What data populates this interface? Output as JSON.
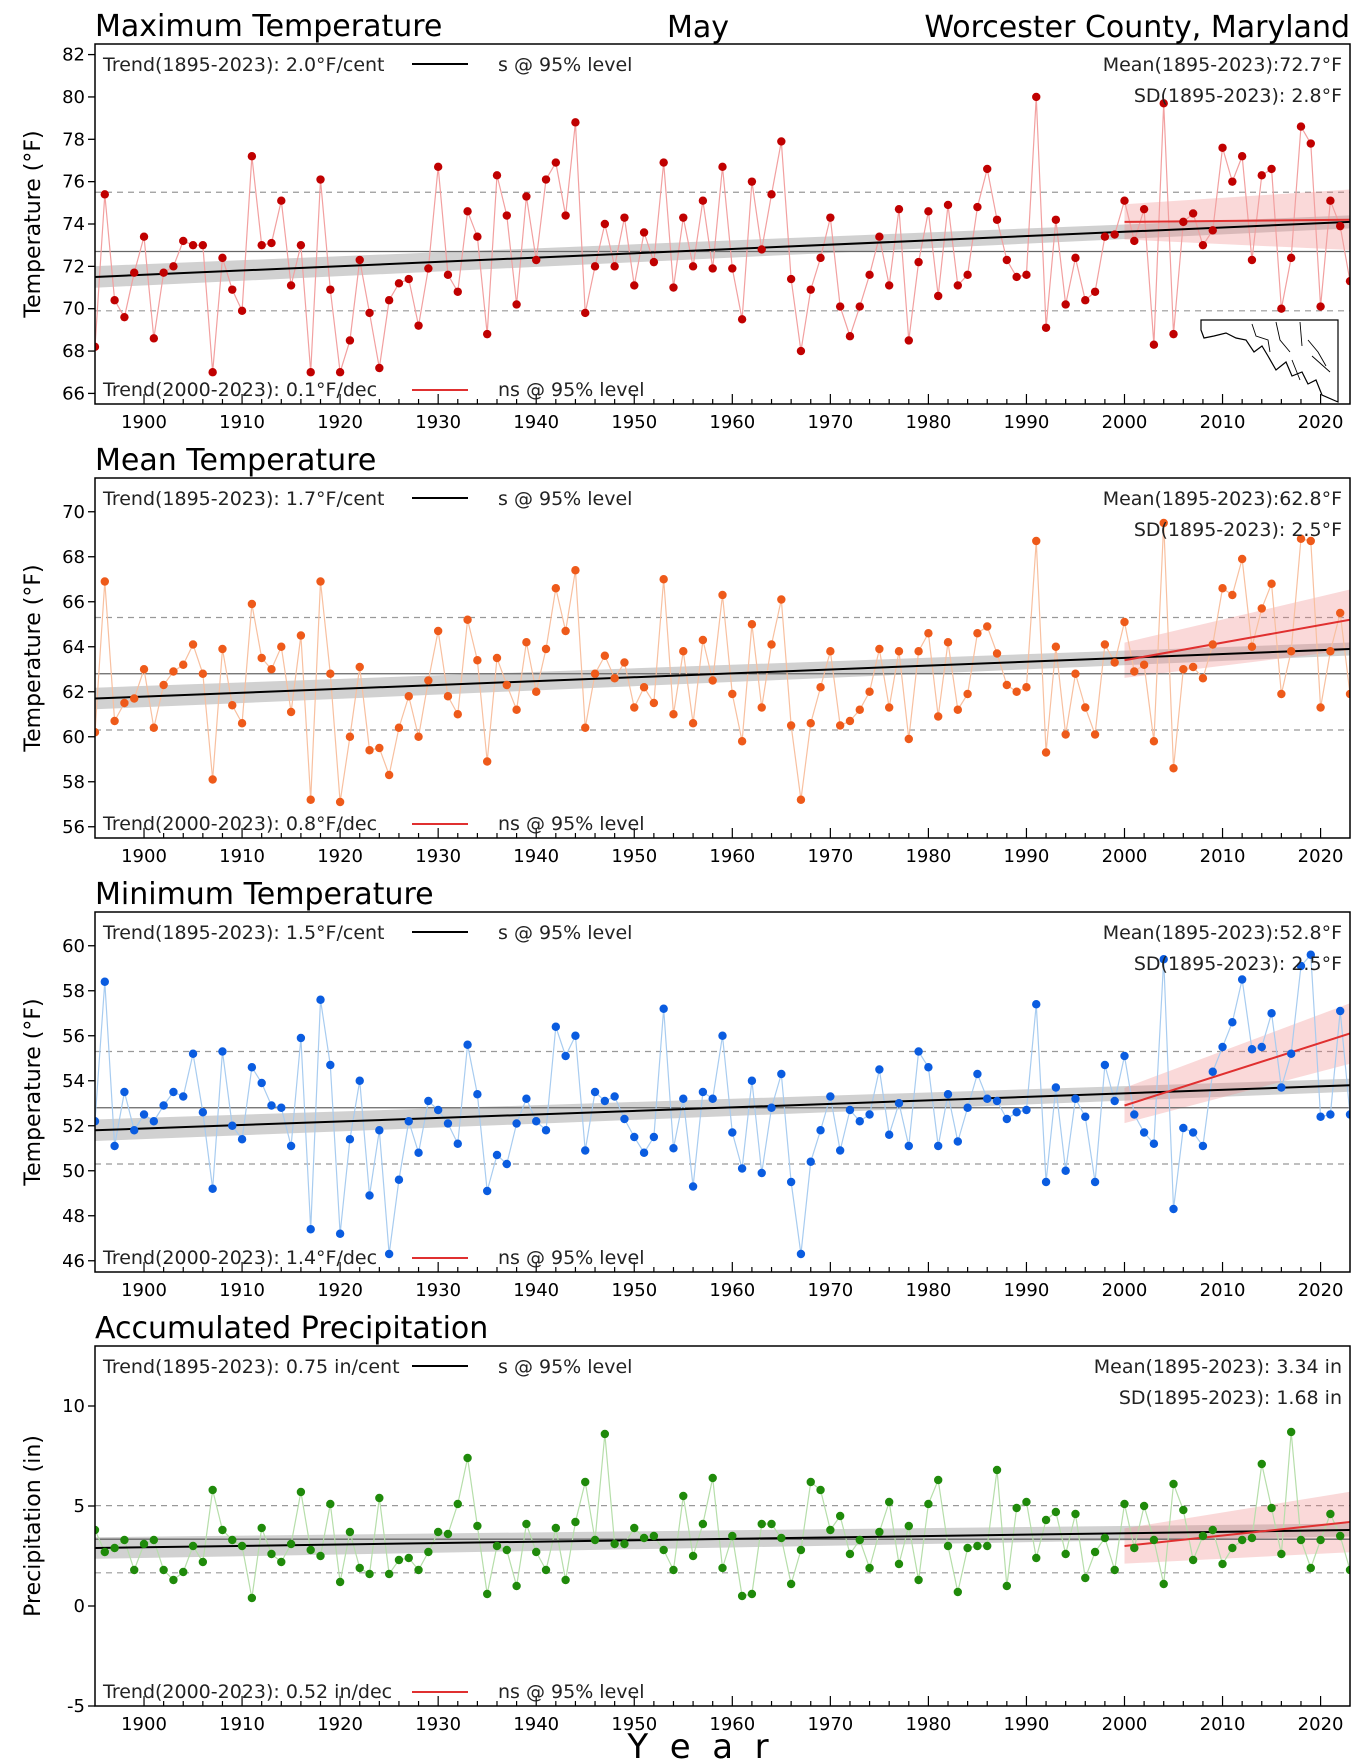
{
  "header": {
    "month": "May",
    "location": "Worcester County, Maryland"
  },
  "xaxis": {
    "label": "Y  e  a  r",
    "range": [
      1895,
      2023
    ],
    "ticks": [
      1900,
      1910,
      1920,
      1930,
      1940,
      1950,
      1960,
      1970,
      1980,
      1990,
      2000,
      2010,
      2020
    ]
  },
  "icons": {
    "inset_map": "maryland-map-icon"
  },
  "chart_data": [
    {
      "type": "line",
      "title": "Maximum Temperature",
      "ylabel": "Temperature (°F)",
      "ylim": [
        65.5,
        82.5
      ],
      "yticks": [
        66,
        68,
        70,
        72,
        74,
        76,
        78,
        80,
        82
      ],
      "trend_long_label": "Trend(1895-2023):  2.0°F/cent",
      "trend_long_sig": "s @ 95% level",
      "trend_recent_label": "Trend(2000-2023):  0.1°F/dec",
      "trend_recent_sig": "ns @ 95% level",
      "mean_label": "Mean(1895-2023):72.7°F",
      "sd_label": "SD(1895-2023): 2.8°F",
      "mean": 72.7,
      "sd": 2.8,
      "trend_long": [
        71.5,
        74.1
      ],
      "trend_recent": [
        74.1,
        74.2
      ],
      "point_color": "#c00000",
      "line_color": "#f2a0a0",
      "x_start": 1895,
      "values": [
        68.2,
        75.4,
        70.4,
        69.6,
        71.7,
        73.4,
        68.6,
        71.7,
        72.0,
        73.2,
        73.0,
        73.0,
        67.0,
        72.4,
        70.9,
        69.9,
        77.2,
        73.0,
        73.1,
        75.1,
        71.1,
        73.0,
        67.0,
        76.1,
        70.9,
        67.0,
        68.5,
        72.3,
        69.8,
        67.2,
        70.4,
        71.2,
        71.4,
        69.2,
        71.9,
        76.7,
        71.6,
        70.8,
        74.6,
        73.4,
        68.8,
        76.3,
        74.4,
        70.2,
        75.3,
        72.3,
        76.1,
        76.9,
        74.4,
        78.8,
        69.8,
        72.0,
        74.0,
        72.0,
        74.3,
        71.1,
        73.6,
        72.2,
        76.9,
        71.0,
        74.3,
        72.0,
        75.1,
        71.9,
        76.7,
        71.9,
        69.5,
        76.0,
        72.8,
        75.4,
        77.9,
        71.4,
        68.0,
        70.9,
        72.4,
        74.3,
        70.1,
        68.7,
        70.1,
        71.6,
        73.4,
        71.1,
        74.7,
        68.5,
        72.2,
        74.6,
        70.6,
        74.9,
        71.1,
        71.6,
        74.8,
        76.6,
        74.2,
        72.3,
        71.5,
        71.6,
        80.0,
        69.1,
        74.2,
        70.2,
        72.4,
        70.4,
        70.8,
        73.4,
        73.5,
        75.1,
        73.2,
        74.7,
        68.3,
        79.7,
        68.8,
        74.1,
        74.5,
        73.0,
        73.7,
        77.6,
        76.0,
        77.2,
        72.3,
        76.3,
        76.6,
        70.0,
        72.4,
        78.6,
        77.8,
        70.1,
        75.1,
        73.9,
        71.3
      ]
    },
    {
      "type": "line",
      "title": "Mean Temperature",
      "ylabel": "Temperature (°F)",
      "ylim": [
        55.5,
        71.5
      ],
      "yticks": [
        56,
        58,
        60,
        62,
        64,
        66,
        68,
        70
      ],
      "trend_long_label": "Trend(1895-2023):  1.7°F/cent",
      "trend_long_sig": "s @ 95% level",
      "trend_recent_label": "Trend(2000-2023):  0.8°F/dec",
      "trend_recent_sig": "ns @ 95% level",
      "mean_label": "Mean(1895-2023):62.8°F",
      "sd_label": "SD(1895-2023): 2.5°F",
      "mean": 62.8,
      "sd": 2.5,
      "trend_long": [
        61.7,
        63.9
      ],
      "trend_recent": [
        63.4,
        65.2
      ],
      "point_color": "#ee5a1a",
      "line_color": "#f8c0a0",
      "x_start": 1895,
      "values": [
        60.2,
        66.9,
        60.7,
        61.5,
        61.7,
        63.0,
        60.4,
        62.3,
        62.9,
        63.2,
        64.1,
        62.8,
        58.1,
        63.9,
        61.4,
        60.6,
        65.9,
        63.5,
        63.0,
        64.0,
        61.1,
        64.5,
        57.2,
        66.9,
        62.8,
        57.1,
        60.0,
        63.1,
        59.4,
        59.5,
        58.3,
        60.4,
        61.8,
        60.0,
        62.5,
        64.7,
        61.8,
        61.0,
        65.2,
        63.4,
        58.9,
        63.5,
        62.3,
        61.2,
        64.2,
        62.0,
        63.9,
        66.6,
        64.7,
        67.4,
        60.4,
        62.8,
        63.6,
        62.6,
        63.3,
        61.3,
        62.2,
        61.5,
        67.0,
        61.0,
        63.8,
        60.6,
        64.3,
        62.5,
        66.3,
        61.9,
        59.8,
        65.0,
        61.3,
        64.1,
        66.1,
        60.5,
        57.2,
        60.6,
        62.2,
        63.8,
        60.5,
        60.7,
        61.2,
        62.0,
        63.9,
        61.3,
        63.8,
        59.9,
        63.8,
        64.6,
        60.9,
        64.2,
        61.2,
        61.9,
        64.6,
        64.9,
        63.7,
        62.3,
        62.0,
        62.2,
        68.7,
        59.3,
        64.0,
        60.1,
        62.8,
        61.3,
        60.1,
        64.1,
        63.3,
        65.1,
        62.9,
        63.2,
        59.8,
        69.5,
        58.6,
        63.0,
        63.1,
        62.6,
        64.1,
        66.6,
        66.3,
        67.9,
        64.0,
        65.7,
        66.8,
        61.9,
        63.8,
        68.8,
        68.7,
        61.3,
        63.8,
        65.5,
        61.9
      ]
    },
    {
      "type": "line",
      "title": "Minimum Temperature",
      "ylabel": "Temperature (°F)",
      "ylim": [
        45.5,
        61.5
      ],
      "yticks": [
        46,
        48,
        50,
        52,
        54,
        56,
        58,
        60
      ],
      "trend_long_label": "Trend(1895-2023):  1.5°F/cent",
      "trend_long_sig": "s @ 95% level",
      "trend_recent_label": "Trend(2000-2023):  1.4°F/dec",
      "trend_recent_sig": "ns @ 95% level",
      "mean_label": "Mean(1895-2023):52.8°F",
      "sd_label": "SD(1895-2023): 2.5°F",
      "mean": 52.8,
      "sd": 2.5,
      "trend_long": [
        51.8,
        53.8
      ],
      "trend_recent": [
        52.9,
        56.1
      ],
      "point_color": "#0a5ce0",
      "line_color": "#a8ccf0",
      "x_start": 1895,
      "values": [
        52.2,
        58.4,
        51.1,
        53.5,
        51.8,
        52.5,
        52.2,
        52.9,
        53.5,
        53.3,
        55.2,
        52.6,
        49.2,
        55.3,
        52.0,
        51.4,
        54.6,
        53.9,
        52.9,
        52.8,
        51.1,
        55.9,
        47.4,
        57.6,
        54.7,
        47.2,
        51.4,
        54.0,
        48.9,
        51.8,
        46.3,
        49.6,
        52.2,
        50.8,
        53.1,
        52.7,
        52.1,
        51.2,
        55.6,
        53.4,
        49.1,
        50.7,
        50.3,
        52.1,
        53.2,
        52.2,
        51.8,
        56.4,
        55.1,
        56.0,
        50.9,
        53.5,
        53.1,
        53.3,
        52.3,
        51.5,
        50.8,
        51.5,
        57.2,
        51.0,
        53.2,
        49.3,
        53.5,
        53.2,
        56.0,
        51.7,
        50.1,
        54.0,
        49.9,
        52.8,
        54.3,
        49.5,
        46.3,
        50.4,
        51.8,
        53.3,
        50.9,
        52.7,
        52.2,
        52.5,
        54.5,
        51.6,
        53.0,
        51.1,
        55.3,
        54.6,
        51.1,
        53.4,
        51.3,
        52.8,
        54.3,
        53.2,
        53.1,
        52.3,
        52.6,
        52.7,
        57.4,
        49.5,
        53.7,
        50.0,
        53.2,
        52.4,
        49.5,
        54.7,
        53.1,
        55.1,
        52.5,
        51.7,
        51.2,
        59.4,
        48.3,
        51.9,
        51.7,
        51.1,
        54.4,
        55.5,
        56.6,
        58.5,
        55.4,
        55.5,
        57.0,
        53.7,
        55.2,
        59.1,
        59.6,
        52.4,
        52.5,
        57.1,
        52.5
      ]
    },
    {
      "type": "line",
      "title": "Accumulated Precipitation",
      "ylabel": "Precipitation (in)",
      "ylim": [
        -5,
        13
      ],
      "yticks": [
        -5,
        0,
        5,
        10
      ],
      "trend_long_label": "Trend(1895-2023):  0.75 in/cent",
      "trend_long_sig": "s @ 95% level",
      "trend_recent_label": "Trend(2000-2023):  0.52 in/dec",
      "trend_recent_sig": "ns @ 95% level",
      "mean_label": "Mean(1895-2023): 3.34 in",
      "sd_label": "SD(1895-2023): 1.68 in",
      "mean": 3.34,
      "sd": 1.68,
      "trend_long": [
        2.9,
        3.8
      ],
      "trend_recent": [
        3.0,
        4.2
      ],
      "point_color": "#1f8a0a",
      "line_color": "#b6deaa",
      "x_start": 1895,
      "values": [
        3.8,
        2.7,
        2.9,
        3.3,
        1.8,
        3.1,
        3.3,
        1.8,
        1.3,
        1.7,
        3.0,
        2.2,
        5.8,
        3.8,
        3.3,
        3.0,
        0.4,
        3.9,
        2.6,
        2.2,
        3.1,
        5.7,
        2.8,
        2.5,
        5.1,
        1.2,
        3.7,
        1.9,
        1.6,
        5.4,
        1.6,
        2.3,
        2.4,
        1.8,
        2.7,
        3.7,
        3.6,
        5.1,
        7.4,
        4.0,
        0.6,
        3.0,
        2.8,
        1.0,
        4.1,
        2.7,
        1.8,
        3.9,
        1.3,
        4.2,
        6.2,
        3.3,
        8.6,
        3.1,
        3.1,
        3.9,
        3.4,
        3.5,
        2.8,
        1.8,
        5.5,
        2.5,
        4.1,
        6.4,
        1.9,
        3.5,
        0.5,
        0.6,
        4.1,
        4.1,
        3.4,
        1.1,
        2.8,
        6.2,
        5.8,
        3.8,
        4.5,
        2.6,
        3.3,
        1.9,
        3.7,
        5.2,
        2.1,
        4.0,
        1.3,
        5.1,
        6.3,
        3.0,
        0.7,
        2.9,
        3.0,
        3.0,
        6.8,
        1.0,
        4.9,
        5.2,
        2.4,
        4.3,
        4.7,
        2.6,
        4.6,
        1.4,
        2.7,
        3.4,
        1.8,
        5.1,
        2.9,
        5.0,
        3.3,
        1.1,
        6.1,
        4.8,
        2.3,
        3.5,
        3.8,
        2.1,
        2.9,
        3.3,
        3.4,
        7.1,
        4.9,
        2.6,
        8.7,
        3.3,
        1.9,
        3.3,
        4.6,
        3.5,
        1.8
      ]
    }
  ]
}
